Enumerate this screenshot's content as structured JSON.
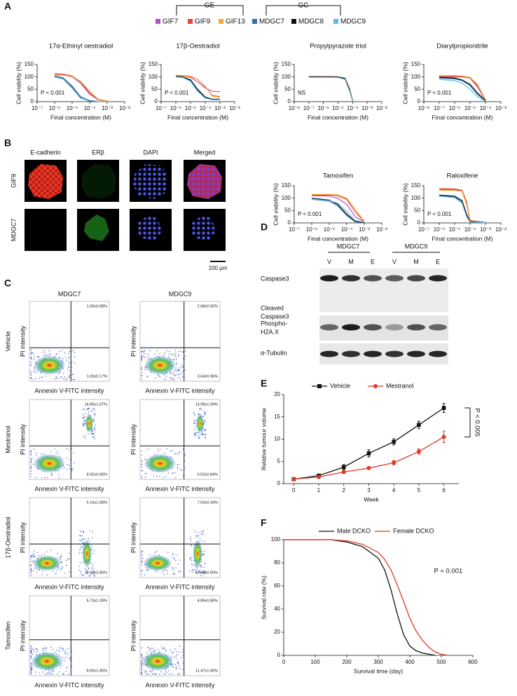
{
  "panel_labels": [
    "A",
    "B",
    "C",
    "D",
    "E",
    "F"
  ],
  "legend_a": {
    "groups": [
      "GE",
      "GC"
    ],
    "items": [
      {
        "name": "GIF7",
        "color": "#b44fc9"
      },
      {
        "name": "GIF9",
        "color": "#e8432e"
      },
      {
        "name": "GIF13",
        "color": "#f6a631"
      },
      {
        "name": "MDGC7",
        "color": "#2f6fad"
      },
      {
        "name": "MDGC8",
        "color": "#111111"
      },
      {
        "name": "MDGC9",
        "color": "#5bbde6"
      }
    ]
  },
  "chart_data": [
    {
      "type": "line",
      "title": "17α-Ethinyl oestradiol",
      "x_label": "Final concentration (M)",
      "y_label": "Cell viability (%)",
      "log_x": true,
      "annotation": "P < 0.001",
      "x": [
        1e-06,
        3e-06,
        1e-05,
        3e-05,
        0.0001,
        0.0003,
        0.001
      ],
      "series": [
        {
          "color": "#b44fc9",
          "values": [
            110,
            109,
            100,
            75,
            30,
            8,
            3
          ]
        },
        {
          "color": "#e8432e",
          "values": [
            112,
            111,
            104,
            80,
            35,
            8,
            2
          ]
        },
        {
          "color": "#f6a631",
          "values": [
            108,
            107,
            102,
            82,
            42,
            10,
            3
          ]
        },
        {
          "color": "#2f6fad",
          "values": [
            100,
            92,
            55,
            15,
            3,
            1,
            1
          ]
        },
        {
          "color": "#111111",
          "values": [
            104,
            96,
            62,
            20,
            4,
            1,
            1
          ]
        },
        {
          "color": "#5bbde6",
          "values": [
            102,
            94,
            58,
            18,
            5,
            1,
            1
          ]
        }
      ],
      "xlim": [
        1e-07,
        0.01
      ],
      "xticks": [
        {
          "value": 1e-07,
          "label": "10⁻⁷"
        },
        {
          "value": 1e-06,
          "label": "10⁻⁶"
        },
        {
          "value": 1e-05,
          "label": "10⁻⁵"
        },
        {
          "value": 0.0001,
          "label": "10⁻⁴"
        },
        {
          "value": 0.001,
          "label": "10⁻³"
        },
        {
          "value": 0.01,
          "label": "10⁻²"
        }
      ],
      "ylim": [
        0,
        150
      ],
      "yticks": [
        0,
        50,
        100,
        150
      ]
    },
    {
      "type": "line",
      "title": "17β-Oestradiol",
      "x_label": "Final concentration (M)",
      "y_label": "Cell viability (%)",
      "log_x": true,
      "annotation": "P < 0.001",
      "x": [
        1e-06,
        3e-06,
        1e-05,
        3e-05,
        0.0001,
        0.0003,
        0.001
      ],
      "series": [
        {
          "color": "#b44fc9",
          "values": [
            105,
            104,
            98,
            80,
            55,
            42,
            40
          ]
        },
        {
          "color": "#e8432e",
          "values": [
            105,
            105,
            102,
            90,
            60,
            25,
            20
          ]
        },
        {
          "color": "#f6a631",
          "values": [
            104,
            104,
            100,
            90,
            62,
            22,
            18
          ]
        },
        {
          "color": "#2f6fad",
          "values": [
            100,
            98,
            85,
            45,
            15,
            8,
            8
          ]
        },
        {
          "color": "#111111",
          "values": [
            102,
            100,
            88,
            50,
            18,
            10,
            10
          ]
        },
        {
          "color": "#5bbde6",
          "values": [
            100,
            97,
            82,
            42,
            14,
            8,
            8
          ]
        }
      ],
      "xlim": [
        1e-07,
        0.01
      ],
      "xticks": [
        {
          "value": 1e-07,
          "label": "10⁻⁷"
        },
        {
          "value": 1e-06,
          "label": "10⁻⁶"
        },
        {
          "value": 1e-05,
          "label": "10⁻⁵"
        },
        {
          "value": 0.0001,
          "label": "10⁻⁴"
        },
        {
          "value": 0.001,
          "label": "10⁻³"
        },
        {
          "value": 0.01,
          "label": "10⁻²"
        }
      ],
      "ylim": [
        0,
        150
      ],
      "yticks": [
        0,
        50,
        100,
        150
      ]
    },
    {
      "type": "line",
      "title": "Propylpyrazole triol",
      "x_label": "Final concentration (M)",
      "y_label": "Cell viability (%)",
      "log_x": true,
      "annotation": "NS",
      "x": [
        1e-07,
        1e-06,
        1e-05,
        3e-05,
        6e-05,
        0.0001
      ],
      "series": [
        {
          "color": "#b44fc9",
          "values": [
            102,
            102,
            101,
            95,
            55,
            5
          ]
        },
        {
          "color": "#e8432e",
          "values": [
            100,
            100,
            100,
            94,
            52,
            4
          ]
        },
        {
          "color": "#f6a631",
          "values": [
            101,
            101,
            100,
            96,
            58,
            6
          ]
        },
        {
          "color": "#2f6fad",
          "values": [
            99,
            99,
            98,
            92,
            48,
            3
          ]
        },
        {
          "color": "#111111",
          "values": [
            100,
            100,
            99,
            93,
            50,
            4
          ]
        },
        {
          "color": "#5bbde6",
          "values": [
            98,
            98,
            97,
            90,
            45,
            3
          ]
        }
      ],
      "xlim": [
        1e-08,
        0.01
      ],
      "xticks": [
        {
          "value": 1e-08,
          "label": "10⁻⁸"
        },
        {
          "value": 1e-07,
          "label": "10⁻⁷"
        },
        {
          "value": 1e-06,
          "label": "10⁻⁶"
        },
        {
          "value": 1e-05,
          "label": "10⁻⁵"
        },
        {
          "value": 0.0001,
          "label": "10⁻⁴"
        },
        {
          "value": 0.001,
          "label": "10⁻³"
        },
        {
          "value": 0.01,
          "label": "10⁻²"
        }
      ],
      "ylim": [
        0,
        150
      ],
      "yticks": [
        0,
        50,
        100,
        150
      ]
    },
    {
      "type": "line",
      "title": "Diarylpropionitrile",
      "x_label": "Final concentration (M)",
      "y_label": "Cell viability (%)",
      "log_x": true,
      "annotation": "P < 0.001",
      "x": [
        1e-07,
        1e-06,
        3e-06,
        1e-05,
        3e-05,
        0.0001
      ],
      "series": [
        {
          "color": "#b44fc9",
          "values": [
            102,
            102,
            101,
            95,
            60,
            5
          ]
        },
        {
          "color": "#e8432e",
          "values": [
            100,
            100,
            100,
            96,
            65,
            6
          ]
        },
        {
          "color": "#f6a631",
          "values": [
            105,
            105,
            104,
            98,
            70,
            8
          ]
        },
        {
          "color": "#2f6fad",
          "values": [
            95,
            92,
            85,
            65,
            30,
            3
          ]
        },
        {
          "color": "#111111",
          "values": [
            98,
            95,
            88,
            70,
            35,
            4
          ]
        },
        {
          "color": "#5bbde6",
          "values": [
            90,
            85,
            75,
            50,
            20,
            2
          ]
        }
      ],
      "xlim": [
        1e-08,
        0.001
      ],
      "xticks": [
        {
          "value": 1e-08,
          "label": "10⁻⁸"
        },
        {
          "value": 1e-07,
          "label": "10⁻⁷"
        },
        {
          "value": 1e-06,
          "label": "10⁻⁶"
        },
        {
          "value": 1e-05,
          "label": "10⁻⁵"
        },
        {
          "value": 0.0001,
          "label": "10⁻⁴"
        },
        {
          "value": 0.001,
          "label": "10⁻³"
        }
      ],
      "ylim": [
        0,
        150
      ],
      "yticks": [
        0,
        50,
        100,
        150
      ]
    },
    {
      "type": "line",
      "title": "Tamoxifen",
      "x_label": "Final concentration (M)",
      "y_label": "Cell viability (%)",
      "log_x": true,
      "annotation": "P < 0.001",
      "x": [
        1e-06,
        1e-05,
        3e-05,
        0.0001,
        0.0003,
        0.001
      ],
      "series": [
        {
          "color": "#b44fc9",
          "values": [
            110,
            108,
            100,
            75,
            25,
            3
          ]
        },
        {
          "color": "#e8432e",
          "values": [
            112,
            112,
            110,
            95,
            45,
            5
          ]
        },
        {
          "color": "#f6a631",
          "values": [
            115,
            115,
            113,
            100,
            55,
            6
          ]
        },
        {
          "color": "#2f6fad",
          "values": [
            95,
            88,
            70,
            30,
            5,
            1
          ]
        },
        {
          "color": "#111111",
          "values": [
            100,
            92,
            75,
            35,
            6,
            1
          ]
        },
        {
          "color": "#5bbde6",
          "values": [
            96,
            90,
            80,
            45,
            10,
            2
          ]
        }
      ],
      "xlim": [
        1e-07,
        0.01
      ],
      "xticks": [
        {
          "value": 1e-07,
          "label": "10⁻⁷"
        },
        {
          "value": 1e-06,
          "label": "10⁻⁶"
        },
        {
          "value": 1e-05,
          "label": "10⁻⁵"
        },
        {
          "value": 0.0001,
          "label": "10⁻⁴"
        },
        {
          "value": 0.001,
          "label": "10⁻³"
        },
        {
          "value": 0.01,
          "label": "10⁻²"
        }
      ],
      "ylim": [
        0,
        150
      ],
      "yticks": [
        0,
        50,
        100,
        150
      ]
    },
    {
      "type": "line",
      "title": "Raloxifene",
      "x_label": "Final concentration (M)",
      "y_label": "Cell viability (%)",
      "log_x": true,
      "annotation": "P < 0.001",
      "x": [
        1e-06,
        1e-05,
        3e-05,
        6e-05,
        0.0001,
        0.001
      ],
      "series": [
        {
          "color": "#b44fc9",
          "values": [
            135,
            134,
            130,
            80,
            8,
            2
          ]
        },
        {
          "color": "#e8432e",
          "values": [
            138,
            137,
            132,
            85,
            10,
            2
          ]
        },
        {
          "color": "#f6a631",
          "values": [
            132,
            131,
            128,
            75,
            7,
            2
          ]
        },
        {
          "color": "#2f6fad",
          "values": [
            110,
            105,
            85,
            30,
            4,
            1
          ]
        },
        {
          "color": "#111111",
          "values": [
            112,
            108,
            90,
            35,
            5,
            1
          ]
        },
        {
          "color": "#5bbde6",
          "values": [
            108,
            102,
            80,
            25,
            3,
            1
          ]
        }
      ],
      "xlim": [
        1e-07,
        0.01
      ],
      "xticks": [
        {
          "value": 1e-07,
          "label": "10⁻⁷"
        },
        {
          "value": 1e-06,
          "label": "10⁻⁶"
        },
        {
          "value": 1e-05,
          "label": "10⁻⁵"
        },
        {
          "value": 0.0001,
          "label": "10⁻⁴"
        },
        {
          "value": 0.001,
          "label": "10⁻³"
        },
        {
          "value": 0.01,
          "label": "10⁻²"
        }
      ],
      "ylim": [
        0,
        150
      ],
      "yticks": [
        0,
        50,
        100,
        150
      ]
    },
    {
      "type": "errorline",
      "x_label": "Week",
      "y_label": "Relative tumour volume",
      "annotation": "P < 0.005",
      "x": [
        0,
        1,
        2,
        3,
        4,
        5,
        6
      ],
      "series": [
        {
          "name": "Vehicle",
          "color": "#111111",
          "marker": "square",
          "values": [
            1,
            1.8,
            3.7,
            6.8,
            9.4,
            13.2,
            17
          ],
          "errors": [
            0.1,
            0.2,
            0.6,
            0.8,
            0.7,
            0.8,
            1.0
          ]
        },
        {
          "name": "Mestranol",
          "color": "#e0392b",
          "marker": "circle",
          "values": [
            1,
            1.5,
            2.6,
            3.5,
            4.7,
            7.2,
            10.5
          ],
          "errors": [
            0.1,
            0.2,
            0.3,
            0.3,
            0.5,
            0.6,
            1.3
          ]
        }
      ],
      "xlim": [
        -0.4,
        6.6
      ],
      "xticks": [
        0,
        1,
        2,
        3,
        4,
        5,
        6
      ],
      "ylim": [
        0,
        20
      ],
      "yticks": [
        0,
        5,
        10,
        15,
        20
      ]
    },
    {
      "type": "line",
      "x_label": "Survival time (day)",
      "y_label": "Survival rate (%)",
      "annotation": "P = 0.001",
      "x": [
        0,
        150,
        200,
        250,
        300,
        320,
        340,
        360,
        380,
        400,
        420,
        440,
        460,
        480,
        500,
        520
      ],
      "series": [
        {
          "name": "Male DCKO",
          "color": "#111111",
          "values": [
            100,
            100,
            98,
            94,
            84,
            74,
            57,
            36,
            18,
            8,
            4,
            2,
            1,
            0,
            null,
            null
          ]
        },
        {
          "name": "Female DCKO",
          "color": "#e0392b",
          "values": [
            100,
            100,
            99,
            96,
            89,
            83,
            74,
            61,
            47,
            32,
            21,
            13,
            7,
            3,
            1,
            0
          ]
        }
      ],
      "xlim": [
        0,
        600
      ],
      "xticks": [
        0,
        100,
        200,
        300,
        400,
        500,
        600
      ],
      "ylim": [
        0,
        100
      ],
      "yticks": [
        0,
        20,
        40,
        60,
        80,
        100
      ]
    }
  ],
  "images": {
    "stains": [
      "E-cadherin",
      "ERβ",
      "DAPI",
      "Merged"
    ],
    "rows": [
      "GIF9",
      "MDGC7"
    ],
    "scale_bar": "100 μm"
  },
  "flow": {
    "columns": [
      "MDGC7",
      "MDGC9"
    ],
    "y_label": "PI intensity",
    "x_label": "Annexin V-FITC intensity",
    "rows": [
      {
        "label": "Vehicle",
        "plots": [
          {
            "upper_right": "1.05±0.08%",
            "lower_right": "1.05±0.17%"
          },
          {
            "upper_right": "2.68±0.92%",
            "lower_right": "3.64±0.96%"
          }
        ]
      },
      {
        "label": "Mestranol",
        "plots": [
          {
            "upper_right": "14.85±1.67%",
            "lower_right": "8.92±0.60%"
          },
          {
            "upper_right": "13.99±1.09%",
            "lower_right": "6.02±0.84%"
          }
        ]
      },
      {
        "label": "17β-Oestradiol",
        "plots": [
          {
            "upper_right": "6.16±1.58%",
            "lower_right": "19.58±2.66%"
          },
          {
            "upper_right": "7.53±0.34%",
            "lower_right": "13.94±0.55%"
          }
        ]
      },
      {
        "label": "Tamoxifen",
        "plots": [
          {
            "upper_right": "5.73±1.33%",
            "lower_right": "8.90±1.05%"
          },
          {
            "upper_right": "4.89±0.80%",
            "lower_right": "11.47±1.56%"
          }
        ]
      }
    ]
  },
  "blot": {
    "groups": [
      "MDGC7",
      "MDGC9"
    ],
    "lanes": [
      "V",
      "M",
      "E",
      "V",
      "M",
      "E"
    ],
    "rows": [
      [
        "Caspase3"
      ],
      [
        "Cleaved",
        "Caspase3"
      ],
      [
        "Phospho-",
        "H2A.X"
      ],
      [
        "α-Tubulin"
      ]
    ]
  }
}
